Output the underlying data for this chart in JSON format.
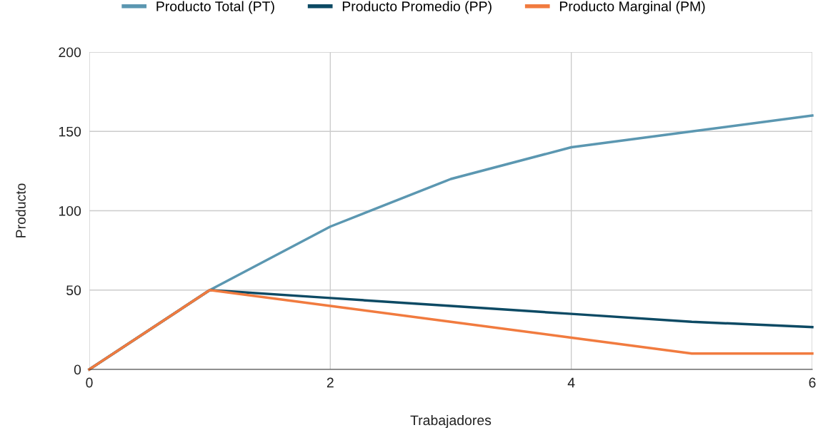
{
  "chart_data": {
    "type": "line",
    "xlabel": "Trabajadores",
    "ylabel": "Producto",
    "x": [
      0,
      1,
      2,
      3,
      4,
      5,
      6
    ],
    "series": [
      {
        "name": "Producto Total (PT)",
        "color": "#5b97b1",
        "values": [
          0,
          50,
          90,
          120,
          140,
          150,
          160
        ]
      },
      {
        "name": "Producto Promedio (PP)",
        "color": "#0d4a64",
        "values": [
          0,
          50,
          45,
          40,
          35,
          30,
          26.7
        ]
      },
      {
        "name": "Producto Marginal (PM)",
        "color": "#f17b3f",
        "values": [
          0,
          50,
          40,
          30,
          20,
          10,
          10
        ]
      }
    ],
    "xlim": [
      0,
      6
    ],
    "xticks": [
      0,
      2,
      4,
      6
    ],
    "ylim": [
      0,
      200
    ],
    "yticks": [
      0,
      50,
      100,
      150,
      200
    ],
    "grid": true,
    "legend": "top",
    "marker": "none",
    "line_style": "solid"
  }
}
